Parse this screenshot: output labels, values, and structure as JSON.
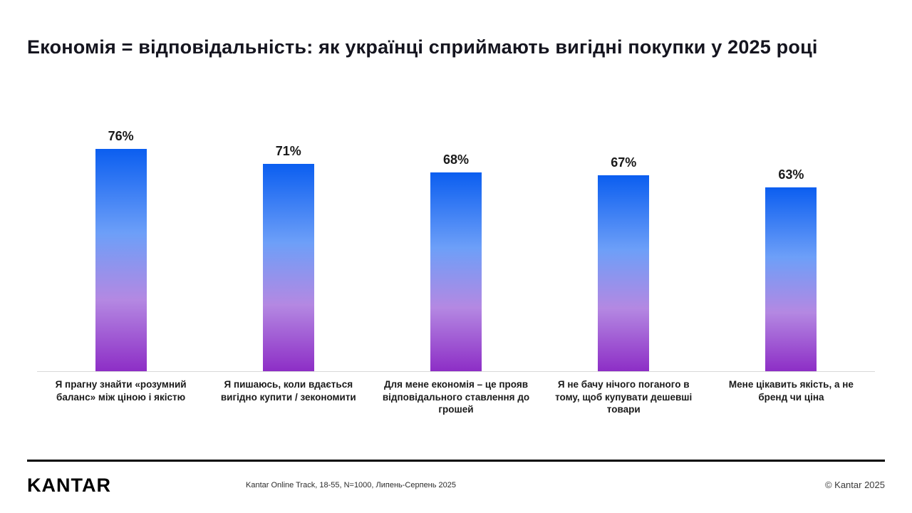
{
  "title": "Економія = відповідальність: як українці сприймають вигідні покупки у 2025 році",
  "chart_data": {
    "type": "bar",
    "title": "Економія = відповідальність: як українці сприймають вигідні покупки у 2025 році",
    "categories": [
      "Я прагну знайти «розумний баланс» між ціною і якістю",
      "Я пишаюсь, коли вдається вигідно купити / зекономити",
      "Для мене економія – це прояв відповідального ставлення до грошей",
      "Я не бачу нічого поганого в тому, щоб купувати дешевші товари",
      "Мене цікавить якість, а не бренд чи ціна"
    ],
    "values": [
      76,
      71,
      68,
      67,
      63
    ],
    "value_labels": [
      "76%",
      "71%",
      "68%",
      "67%",
      "63%"
    ],
    "xlabel": "",
    "ylabel": "",
    "ylim": [
      0,
      80
    ],
    "grid": false,
    "legend": false,
    "bar_gradient_top": "#0b5ef0",
    "bar_gradient_mid1": "#6d9ff8",
    "bar_gradient_mid2": "#b488e2",
    "bar_gradient_bottom": "#8d2ec6",
    "baseline_color": "#d8d8d8"
  },
  "footer": {
    "logo_text": "KANTAR",
    "source": "Kantar  Online Track, 18-55, N=1000, Липень-Серпень 2025",
    "copyright": "© Kantar 2025"
  }
}
